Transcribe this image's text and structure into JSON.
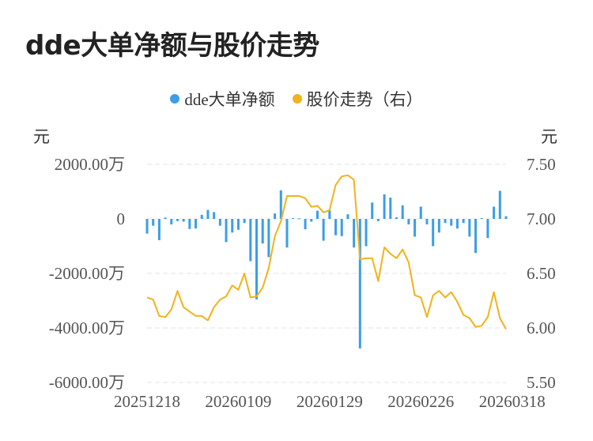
{
  "title": "dde大单净额与股价走势",
  "legend": [
    {
      "label": "dde大单净额",
      "color": "#3b9ee6"
    },
    {
      "label": "股价走势（右）",
      "color": "#f2b21b"
    }
  ],
  "units": {
    "left": "元",
    "right": "元"
  },
  "chart_data": {
    "type": "bar+line",
    "title": "dde大单净额与股价走势",
    "y_left": {
      "ticks": [
        "2000.00万",
        "0",
        "-2000.00万",
        "-4000.00万",
        "-6000.00万"
      ],
      "tick_values": [
        2000,
        0,
        -2000,
        -4000,
        -6000
      ],
      "range": [
        -6000,
        2000
      ]
    },
    "y_right": {
      "ticks": [
        "7.50",
        "7.00",
        "6.50",
        "6.00",
        "5.50"
      ],
      "tick_values": [
        7.5,
        7.0,
        6.5,
        6.0,
        5.5
      ],
      "range": [
        5.5,
        7.5
      ]
    },
    "x_ticks": [
      "20251218",
      "20260109",
      "20260129",
      "20260226",
      "20260318"
    ],
    "x_tick_index": [
      0,
      15,
      30,
      45,
      60
    ],
    "grid": true,
    "series": [
      {
        "name": "dde大单净额",
        "axis": "left",
        "type": "bar",
        "values": [
          -540,
          -250,
          -780,
          50,
          -200,
          -80,
          -100,
          -370,
          -350,
          150,
          330,
          250,
          -250,
          -850,
          -500,
          -400,
          -150,
          -1550,
          -2950,
          -900,
          -1400,
          200,
          1050,
          -1050,
          30,
          20,
          -380,
          -100,
          300,
          -800,
          320,
          -600,
          -630,
          170,
          -1050,
          -4750,
          -1000,
          600,
          -80,
          900,
          780,
          60,
          500,
          -200,
          -650,
          450,
          -200,
          -1000,
          -500,
          -150,
          -250,
          -350,
          -150,
          -650,
          -1250,
          30,
          -700,
          450,
          1030,
          100
        ],
        "color": "#3b9ee6"
      },
      {
        "name": "股价走势（右）",
        "axis": "right",
        "type": "line",
        "values": [
          6.28,
          6.26,
          6.11,
          6.1,
          6.17,
          6.34,
          6.19,
          6.15,
          6.11,
          6.11,
          6.07,
          6.19,
          6.26,
          6.29,
          6.39,
          6.35,
          6.5,
          6.28,
          6.29,
          6.37,
          6.55,
          6.84,
          6.98,
          7.21,
          7.21,
          7.21,
          7.19,
          7.11,
          7.12,
          7.06,
          7.08,
          7.31,
          7.39,
          7.4,
          7.36,
          6.63,
          6.64,
          6.64,
          6.43,
          6.74,
          6.68,
          6.64,
          6.72,
          6.6,
          6.3,
          6.28,
          6.1,
          6.3,
          6.34,
          6.28,
          6.33,
          6.24,
          6.12,
          6.09,
          6.01,
          6.02,
          6.1,
          6.33,
          6.09,
          5.99
        ],
        "color": "#f2b21b"
      }
    ]
  }
}
